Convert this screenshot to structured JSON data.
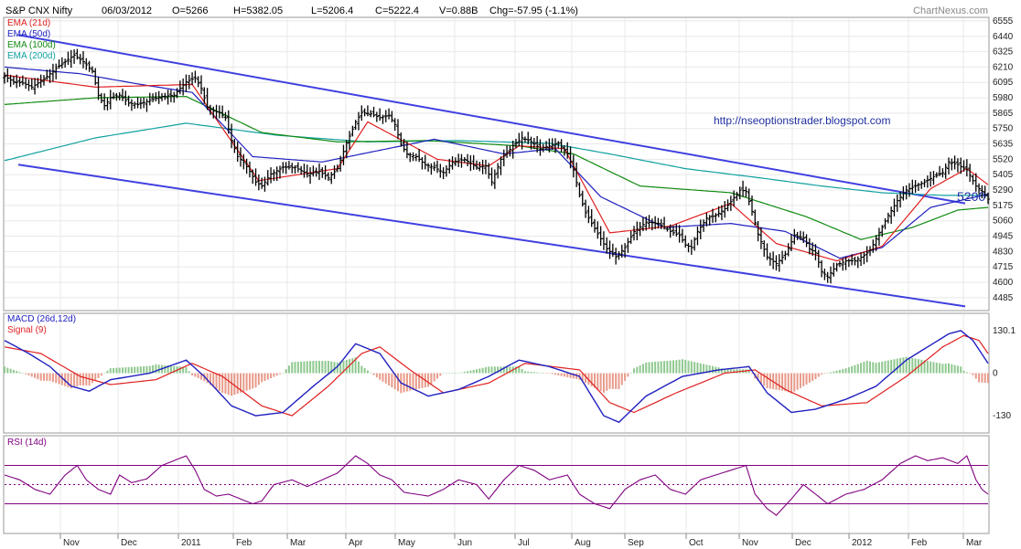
{
  "header": {
    "symbol": "S&P CNX Nifty",
    "date": "06/03/2012",
    "open": "O=5266",
    "high": "H=5382.05",
    "low": "L=5206.4",
    "close": "C=5222.4",
    "volume": "V=0.88B",
    "change": "Chg=-57.95 (-1.1%)",
    "brand": "ChartNexus.com"
  },
  "annotations": {
    "url": "http://nseoptionstrader.blogspot.com",
    "level_label": "5200"
  },
  "chart_data": [
    {
      "type": "line",
      "panel": "price",
      "ylim": [
        4395,
        6575
      ],
      "y_ticks": [
        "6555",
        "6440",
        "6325",
        "6210",
        "6095",
        "5980",
        "5865",
        "5750",
        "5635",
        "5520",
        "5405",
        "5290",
        "5175",
        "5060",
        "4945",
        "4830",
        "4715",
        "4600",
        "4485"
      ],
      "x_ticks": [
        "Nov",
        "Dec",
        "2011",
        "Feb",
        "Mar",
        "Apr",
        "May",
        "Jun",
        "Jul",
        "Aug",
        "Sep",
        "Oct",
        "Nov",
        "Dec",
        "2012",
        "Feb",
        "Mar"
      ],
      "legend": [
        {
          "name": "EMA (21d)",
          "color": "#e02020"
        },
        {
          "name": "EMA (50d)",
          "color": "#2020c0"
        },
        {
          "name": "EMA (100d)",
          "color": "#108a10"
        },
        {
          "name": "EMA (200d)",
          "color": "#10a0a0"
        }
      ],
      "closes": [
        [
          0,
          6140
        ],
        [
          3,
          6100
        ],
        [
          6,
          6090
        ],
        [
          9,
          6060
        ],
        [
          13,
          6120
        ],
        [
          17,
          6200
        ],
        [
          20,
          6250
        ],
        [
          23,
          6300
        ],
        [
          26,
          6250
        ],
        [
          29,
          6180
        ],
        [
          31,
          6000
        ],
        [
          33,
          5920
        ],
        [
          35,
          5980
        ],
        [
          38,
          6000
        ],
        [
          41,
          5940
        ],
        [
          44,
          5930
        ],
        [
          48,
          5960
        ],
        [
          52,
          5990
        ],
        [
          56,
          6000
        ],
        [
          60,
          6100
        ],
        [
          63,
          6130
        ],
        [
          65,
          6050
        ],
        [
          67,
          5910
        ],
        [
          69,
          5880
        ],
        [
          71,
          5870
        ],
        [
          73,
          5830
        ],
        [
          75,
          5660
        ],
        [
          77,
          5540
        ],
        [
          79,
          5500
        ],
        [
          81,
          5430
        ],
        [
          83,
          5350
        ],
        [
          85,
          5320
        ],
        [
          88,
          5410
        ],
        [
          92,
          5460
        ],
        [
          96,
          5460
        ],
        [
          100,
          5410
        ],
        [
          104,
          5430
        ],
        [
          107,
          5380
        ],
        [
          110,
          5450
        ],
        [
          113,
          5640
        ],
        [
          116,
          5800
        ],
        [
          118,
          5870
        ],
        [
          121,
          5860
        ],
        [
          124,
          5830
        ],
        [
          127,
          5850
        ],
        [
          129,
          5780
        ],
        [
          131,
          5630
        ],
        [
          133,
          5560
        ],
        [
          136,
          5540
        ],
        [
          139,
          5480
        ],
        [
          142,
          5460
        ],
        [
          145,
          5420
        ],
        [
          148,
          5500
        ],
        [
          152,
          5520
        ],
        [
          156,
          5460
        ],
        [
          159,
          5470
        ],
        [
          161,
          5350
        ],
        [
          164,
          5520
        ],
        [
          168,
          5620
        ],
        [
          171,
          5680
        ],
        [
          174,
          5650
        ],
        [
          177,
          5600
        ],
        [
          180,
          5620
        ],
        [
          183,
          5640
        ],
        [
          186,
          5560
        ],
        [
          188,
          5440
        ],
        [
          190,
          5250
        ],
        [
          192,
          5120
        ],
        [
          195,
          5000
        ],
        [
          199,
          4850
        ],
        [
          202,
          4790
        ],
        [
          205,
          4860
        ],
        [
          208,
          4980
        ],
        [
          212,
          5050
        ],
        [
          216,
          5040
        ],
        [
          220,
          4980
        ],
        [
          223,
          4950
        ],
        [
          225,
          4880
        ],
        [
          227,
          4860
        ],
        [
          229,
          4980
        ],
        [
          232,
          5080
        ],
        [
          235,
          5100
        ],
        [
          238,
          5150
        ],
        [
          241,
          5230
        ],
        [
          243,
          5290
        ],
        [
          245,
          5280
        ],
        [
          247,
          5130
        ],
        [
          249,
          4960
        ],
        [
          252,
          4790
        ],
        [
          255,
          4740
        ],
        [
          258,
          4810
        ],
        [
          261,
          4950
        ],
        [
          264,
          4930
        ],
        [
          266,
          4850
        ],
        [
          268,
          4820
        ],
        [
          270,
          4680
        ],
        [
          272,
          4640
        ],
        [
          275,
          4730
        ],
        [
          278,
          4760
        ],
        [
          281,
          4760
        ],
        [
          284,
          4800
        ],
        [
          286,
          4840
        ],
        [
          289,
          4970
        ],
        [
          292,
          5100
        ],
        [
          295,
          5210
        ],
        [
          298,
          5290
        ],
        [
          301,
          5320
        ],
        [
          304,
          5350
        ],
        [
          307,
          5390
        ],
        [
          310,
          5420
        ],
        [
          312,
          5500
        ],
        [
          315,
          5480
        ],
        [
          318,
          5440
        ],
        [
          321,
          5320
        ],
        [
          323,
          5280
        ],
        [
          325,
          5222
        ]
      ],
      "ema_21d": [
        [
          0,
          6150
        ],
        [
          30,
          6060
        ],
        [
          62,
          6080
        ],
        [
          84,
          5360
        ],
        [
          110,
          5450
        ],
        [
          120,
          5800
        ],
        [
          143,
          5520
        ],
        [
          160,
          5470
        ],
        [
          170,
          5620
        ],
        [
          185,
          5600
        ],
        [
          200,
          4970
        ],
        [
          220,
          5020
        ],
        [
          240,
          5190
        ],
        [
          255,
          4890
        ],
        [
          275,
          4760
        ],
        [
          290,
          4870
        ],
        [
          306,
          5300
        ],
        [
          318,
          5450
        ],
        [
          325,
          5330
        ]
      ],
      "ema_50d": [
        [
          0,
          6210
        ],
        [
          25,
          6160
        ],
        [
          45,
          6080
        ],
        [
          62,
          6020
        ],
        [
          82,
          5540
        ],
        [
          105,
          5500
        ],
        [
          118,
          5560
        ],
        [
          142,
          5670
        ],
        [
          165,
          5560
        ],
        [
          182,
          5600
        ],
        [
          197,
          5240
        ],
        [
          218,
          5010
        ],
        [
          240,
          5040
        ],
        [
          258,
          4980
        ],
        [
          276,
          4780
        ],
        [
          290,
          4860
        ],
        [
          306,
          5160
        ],
        [
          325,
          5260
        ]
      ],
      "ema_100d": [
        [
          0,
          5930
        ],
        [
          30,
          5980
        ],
        [
          60,
          5990
        ],
        [
          85,
          5720
        ],
        [
          110,
          5650
        ],
        [
          140,
          5660
        ],
        [
          170,
          5620
        ],
        [
          188,
          5560
        ],
        [
          210,
          5320
        ],
        [
          240,
          5270
        ],
        [
          265,
          5090
        ],
        [
          283,
          4920
        ],
        [
          300,
          5010
        ],
        [
          315,
          5140
        ],
        [
          325,
          5160
        ]
      ],
      "ema_200d": [
        [
          0,
          5510
        ],
        [
          30,
          5680
        ],
        [
          60,
          5790
        ],
        [
          90,
          5700
        ],
        [
          120,
          5650
        ],
        [
          150,
          5660
        ],
        [
          180,
          5640
        ],
        [
          200,
          5560
        ],
        [
          225,
          5450
        ],
        [
          250,
          5380
        ],
        [
          270,
          5320
        ],
        [
          290,
          5270
        ],
        [
          310,
          5250
        ],
        [
          325,
          5250
        ]
      ],
      "channel_upper": [
        [
          0,
          6450
        ],
        [
          325,
          5190
        ]
      ],
      "channel_lower": [
        [
          0,
          5480
        ],
        [
          325,
          4420
        ]
      ]
    },
    {
      "type": "line",
      "panel": "macd",
      "ylim": [
        -180,
        180
      ],
      "y_ticks": [
        "130.1",
        "0",
        "-130"
      ],
      "legend": [
        {
          "name": "MACD (26d,12d)",
          "color": "#2020c0"
        },
        {
          "name": "Signal (9)",
          "color": "#e02020"
        }
      ],
      "macd": [
        [
          0,
          100
        ],
        [
          8,
          60
        ],
        [
          15,
          20
        ],
        [
          22,
          -40
        ],
        [
          28,
          -55
        ],
        [
          35,
          -20
        ],
        [
          48,
          0
        ],
        [
          60,
          40
        ],
        [
          66,
          -10
        ],
        [
          75,
          -100
        ],
        [
          83,
          -130
        ],
        [
          92,
          -120
        ],
        [
          102,
          -40
        ],
        [
          110,
          20
        ],
        [
          116,
          90
        ],
        [
          124,
          60
        ],
        [
          131,
          -30
        ],
        [
          140,
          -70
        ],
        [
          150,
          -50
        ],
        [
          160,
          -10
        ],
        [
          170,
          40
        ],
        [
          180,
          20
        ],
        [
          190,
          -10
        ],
        [
          198,
          -130
        ],
        [
          203,
          -150
        ],
        [
          212,
          -70
        ],
        [
          224,
          -10
        ],
        [
          236,
          10
        ],
        [
          246,
          20
        ],
        [
          252,
          -60
        ],
        [
          260,
          -120
        ],
        [
          268,
          -110
        ],
        [
          278,
          -80
        ],
        [
          288,
          -40
        ],
        [
          298,
          40
        ],
        [
          305,
          80
        ],
        [
          312,
          120
        ],
        [
          316,
          130
        ],
        [
          320,
          100
        ],
        [
          325,
          30
        ]
      ],
      "signal": [
        [
          0,
          80
        ],
        [
          12,
          60
        ],
        [
          25,
          -10
        ],
        [
          35,
          -35
        ],
        [
          50,
          -20
        ],
        [
          62,
          30
        ],
        [
          72,
          -10
        ],
        [
          85,
          -100
        ],
        [
          95,
          -130
        ],
        [
          107,
          -40
        ],
        [
          118,
          60
        ],
        [
          124,
          80
        ],
        [
          134,
          10
        ],
        [
          145,
          -60
        ],
        [
          160,
          -30
        ],
        [
          172,
          30
        ],
        [
          190,
          10
        ],
        [
          200,
          -90
        ],
        [
          208,
          -120
        ],
        [
          222,
          -60
        ],
        [
          238,
          0
        ],
        [
          248,
          10
        ],
        [
          258,
          -50
        ],
        [
          270,
          -100
        ],
        [
          285,
          -90
        ],
        [
          298,
          -10
        ],
        [
          310,
          80
        ],
        [
          317,
          115
        ],
        [
          322,
          100
        ],
        [
          325,
          60
        ]
      ]
    },
    {
      "type": "line",
      "panel": "rsi",
      "ylim": [
        0,
        100
      ],
      "legend": [
        {
          "name": "RSI (14d)",
          "color": "#800080"
        }
      ],
      "levels": [
        70,
        50,
        30
      ],
      "rsi": [
        [
          0,
          60
        ],
        [
          5,
          55
        ],
        [
          10,
          45
        ],
        [
          15,
          40
        ],
        [
          20,
          60
        ],
        [
          24,
          70
        ],
        [
          27,
          55
        ],
        [
          31,
          45
        ],
        [
          35,
          40
        ],
        [
          38,
          60
        ],
        [
          42,
          52
        ],
        [
          47,
          56
        ],
        [
          52,
          70
        ],
        [
          56,
          75
        ],
        [
          60,
          80
        ],
        [
          63,
          65
        ],
        [
          66,
          45
        ],
        [
          70,
          38
        ],
        [
          74,
          40
        ],
        [
          78,
          35
        ],
        [
          82,
          30
        ],
        [
          85,
          33
        ],
        [
          89,
          50
        ],
        [
          95,
          55
        ],
        [
          100,
          48
        ],
        [
          105,
          55
        ],
        [
          110,
          62
        ],
        [
          116,
          80
        ],
        [
          120,
          72
        ],
        [
          124,
          60
        ],
        [
          128,
          55
        ],
        [
          132,
          42
        ],
        [
          136,
          40
        ],
        [
          140,
          38
        ],
        [
          145,
          45
        ],
        [
          150,
          55
        ],
        [
          156,
          50
        ],
        [
          160,
          35
        ],
        [
          165,
          55
        ],
        [
          170,
          70
        ],
        [
          175,
          65
        ],
        [
          180,
          55
        ],
        [
          186,
          60
        ],
        [
          190,
          40
        ],
        [
          195,
          30
        ],
        [
          200,
          25
        ],
        [
          205,
          45
        ],
        [
          210,
          55
        ],
        [
          215,
          60
        ],
        [
          220,
          45
        ],
        [
          225,
          40
        ],
        [
          230,
          55
        ],
        [
          235,
          60
        ],
        [
          240,
          65
        ],
        [
          245,
          70
        ],
        [
          248,
          40
        ],
        [
          252,
          25
        ],
        [
          255,
          18
        ],
        [
          260,
          35
        ],
        [
          264,
          50
        ],
        [
          268,
          40
        ],
        [
          272,
          30
        ],
        [
          278,
          40
        ],
        [
          284,
          45
        ],
        [
          290,
          55
        ],
        [
          296,
          72
        ],
        [
          301,
          80
        ],
        [
          305,
          75
        ],
        [
          310,
          78
        ],
        [
          315,
          72
        ],
        [
          318,
          80
        ],
        [
          321,
          55
        ],
        [
          323,
          45
        ],
        [
          325,
          40
        ]
      ]
    }
  ]
}
